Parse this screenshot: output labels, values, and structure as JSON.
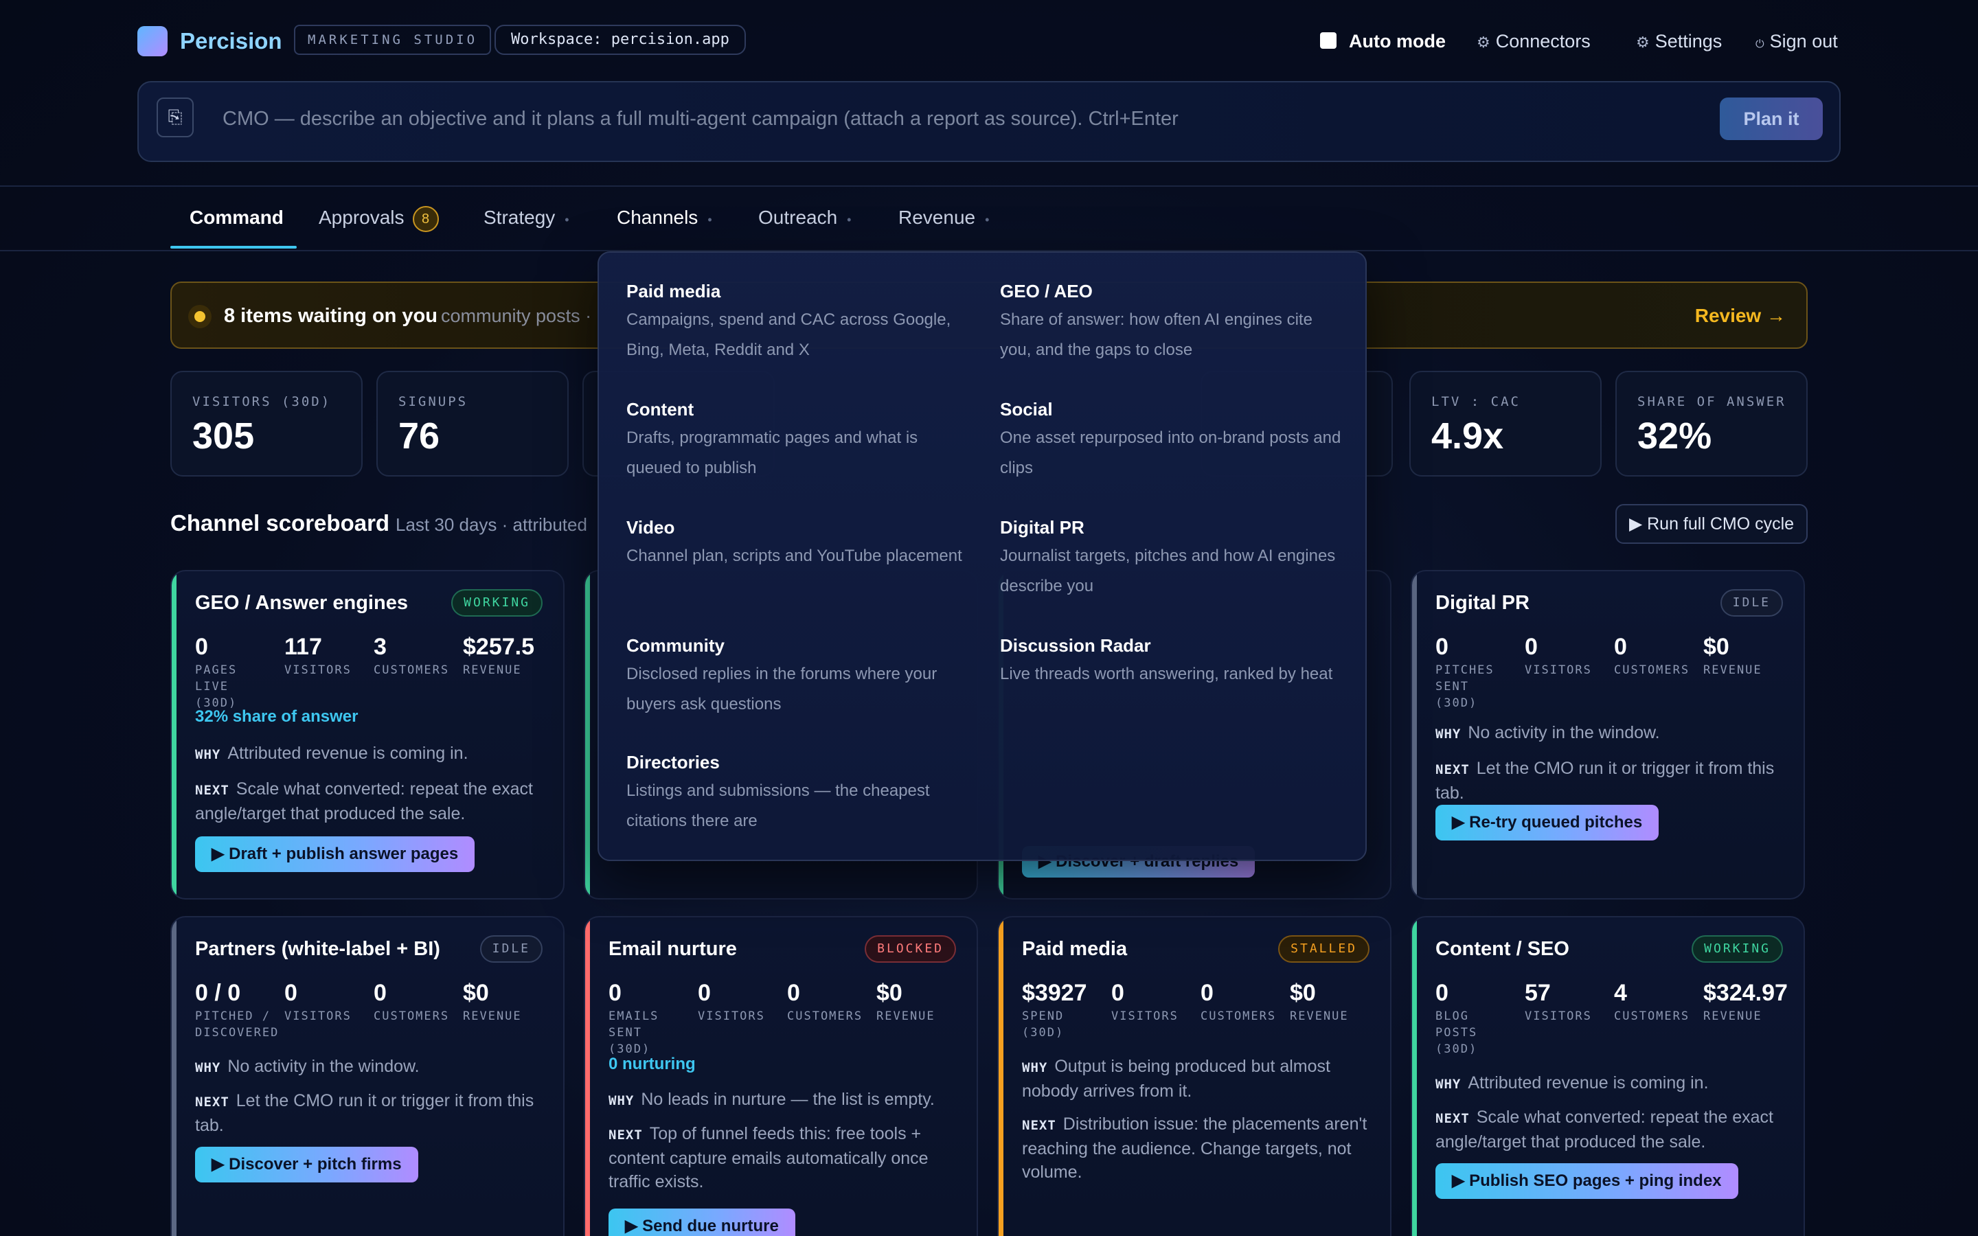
{
  "header": {
    "brand": "Percision",
    "studio": "MARKETING STUDIO",
    "workspace": "Workspace: percision.app",
    "auto_mode": "Auto mode",
    "connectors": "Connectors",
    "settings": "Settings",
    "sign_out": "Sign out"
  },
  "command": {
    "placeholder": "CMO — describe an objective and it plans a full multi-agent campaign (attach a report as source). Ctrl+Enter",
    "plan_button": "Plan it"
  },
  "tabs": [
    {
      "label": "Command"
    },
    {
      "label": "Approvals",
      "badge": "8"
    },
    {
      "label": "Strategy"
    },
    {
      "label": "Channels"
    },
    {
      "label": "Outreach"
    },
    {
      "label": "Revenue"
    }
  ],
  "banner": {
    "title": "8 items waiting on you",
    "subtitle": "community posts ·",
    "action": "Review →"
  },
  "kpis": [
    {
      "label": "VISITORS (30D)",
      "value": "305"
    },
    {
      "label": "SIGNUPS",
      "value": "76"
    },
    {
      "label": "LTV : CAC",
      "value": "4.9x"
    },
    {
      "label": "SHARE OF ANSWER",
      "value": "32%"
    }
  ],
  "scoreboard": {
    "title": "Channel scoreboard",
    "subtitle": "Last 30 days · attributed",
    "run_button": "Run full CMO cycle"
  },
  "cards": {
    "geo": {
      "title": "GEO / Answer engines",
      "status": "WORKING",
      "metrics": [
        {
          "value": "0",
          "label": "PAGES LIVE (30D)"
        },
        {
          "value": "117",
          "label": "VISITORS"
        },
        {
          "value": "3",
          "label": "CUSTOMERS"
        },
        {
          "value": "$257.5",
          "label": "REVENUE"
        }
      ],
      "highlight": "32% share of answer",
      "why": "Attributed revenue is coming in.",
      "next": "Scale what converted: repeat the exact angle/target that produced the sale.",
      "action": "Draft + publish answer pages"
    },
    "community": {
      "action": "Discover + draft replies"
    },
    "digital_pr": {
      "title": "Digital PR",
      "status": "IDLE",
      "metrics": [
        {
          "value": "0",
          "label": "PITCHES SENT (30D)"
        },
        {
          "value": "0",
          "label": "VISITORS"
        },
        {
          "value": "0",
          "label": "CUSTOMERS"
        },
        {
          "value": "$0",
          "label": "REVENUE"
        }
      ],
      "why": "No activity in the window.",
      "next": "Let the CMO run it or trigger it from this tab.",
      "action": "Re-try queued pitches"
    },
    "partners": {
      "title": "Partners (white-label + BI)",
      "status": "IDLE",
      "metrics": [
        {
          "value": "0 / 0",
          "label": "PITCHED / DISCOVERED"
        },
        {
          "value": "0",
          "label": "VISITORS"
        },
        {
          "value": "0",
          "label": "CUSTOMERS"
        },
        {
          "value": "$0",
          "label": "REVENUE"
        }
      ],
      "why": "No activity in the window.",
      "next": "Let the CMO run it or trigger it from this tab.",
      "action": "Discover + pitch firms"
    },
    "email": {
      "title": "Email nurture",
      "status": "BLOCKED",
      "metrics": [
        {
          "value": "0",
          "label": "EMAILS SENT (30D)"
        },
        {
          "value": "0",
          "label": "VISITORS"
        },
        {
          "value": "0",
          "label": "CUSTOMERS"
        },
        {
          "value": "$0",
          "label": "REVENUE"
        }
      ],
      "highlight": "0 nurturing",
      "why": "No leads in nurture — the list is empty.",
      "next": "Top of funnel feeds this: free tools + content capture emails automatically once traffic exists.",
      "action": "Send due nurture"
    },
    "paid": {
      "title": "Paid media",
      "status": "STALLED",
      "metrics": [
        {
          "value": "$3927",
          "label": "SPEND (30D)"
        },
        {
          "value": "0",
          "label": "VISITORS"
        },
        {
          "value": "0",
          "label": "CUSTOMERS"
        },
        {
          "value": "$0",
          "label": "REVENUE"
        }
      ],
      "why": "Output is being produced but almost nobody arrives from it.",
      "next": "Distribution issue: the placements aren't reaching the audience. Change targets, not volume."
    },
    "content": {
      "title": "Content / SEO",
      "status": "WORKING",
      "metrics": [
        {
          "value": "0",
          "label": "BLOG POSTS (30D)"
        },
        {
          "value": "57",
          "label": "VISITORS"
        },
        {
          "value": "4",
          "label": "CUSTOMERS"
        },
        {
          "value": "$324.97",
          "label": "REVENUE"
        }
      ],
      "why": "Attributed revenue is coming in.",
      "next": "Scale what converted: repeat the exact angle/target that produced the sale.",
      "action": "Publish SEO pages + ping index"
    }
  },
  "labels": {
    "why": "WHY",
    "next": "NEXT"
  },
  "channels_menu": [
    {
      "title": "Paid media",
      "desc": "Campaigns, spend and CAC across Google, Bing, Meta, Reddit and X"
    },
    {
      "title": "GEO / AEO",
      "desc": "Share of answer: how often AI engines cite you, and the gaps to close"
    },
    {
      "title": "Content",
      "desc": "Drafts, programmatic pages and what is queued to publish"
    },
    {
      "title": "Social",
      "desc": "One asset repurposed into on-brand posts and clips"
    },
    {
      "title": "Video",
      "desc": "Channel plan, scripts and YouTube placement"
    },
    {
      "title": "Digital PR",
      "desc": "Journalist targets, pitches and how AI engines describe you"
    },
    {
      "title": "Community",
      "desc": "Disclosed replies in the forums where your buyers ask questions"
    },
    {
      "title": "Discussion Radar",
      "desc": "Live threads worth answering, ranked by heat"
    },
    {
      "title": "Directories",
      "desc": "Listings and submissions — the cheapest citations there are"
    }
  ],
  "colors": {
    "working": "#3fd6a0",
    "idle": "#8d98b2",
    "blocked": "#ff6b6b",
    "stalled": "#f5a020",
    "accent": "#3ec7f0"
  }
}
